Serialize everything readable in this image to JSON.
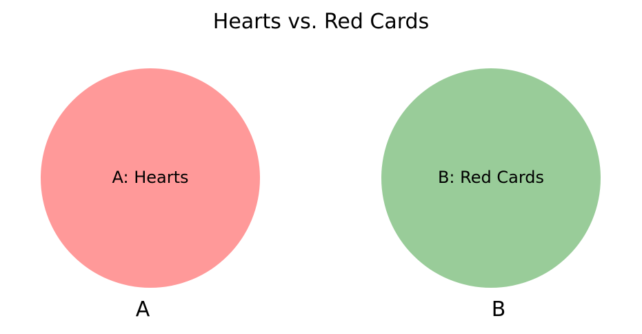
{
  "title": "Hearts vs. Red Cards",
  "sets": [
    {
      "id": "A",
      "set_label": "A",
      "region_label": "A: Hearts",
      "color": "#ff9999"
    },
    {
      "id": "B",
      "set_label": "B",
      "region_label": "B: Red Cards",
      "color": "#99cc99"
    }
  ]
}
